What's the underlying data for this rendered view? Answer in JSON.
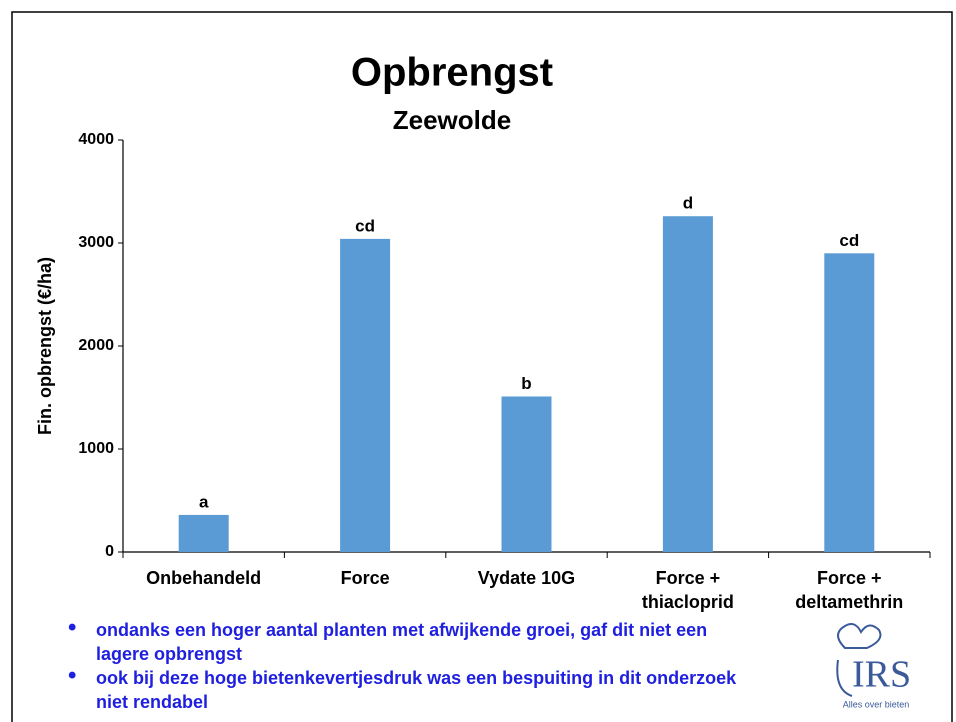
{
  "chart_data": {
    "type": "bar",
    "title": "Opbrengst",
    "subtitle": "Zeewolde",
    "y_label": "Fin. opbrengst (€/ha)",
    "categories": [
      "Onbehandeld",
      "Force",
      "Vydate 10G",
      "Force + thiacloprid",
      "Force + deltamethrin"
    ],
    "values": [
      360,
      3040,
      1510,
      3260,
      2900
    ],
    "annotations": [
      "a",
      "cd",
      "b",
      "d",
      "cd"
    ],
    "color": "#5b9bd5",
    "ylim": [
      0,
      4000
    ],
    "yticks": [
      0,
      1000,
      2000,
      3000,
      4000
    ],
    "grid": false
  },
  "bullets": [
    "ondanks een hoger aantal planten met afwijkende groei, gaf dit niet een lagere opbrengst",
    "ook bij deze hoge bietenkevertjesdruk was een bespuiting in dit onderzoek niet rendabel"
  ],
  "logo": {
    "text": "IRS",
    "tagline": "Alles over bieten"
  }
}
